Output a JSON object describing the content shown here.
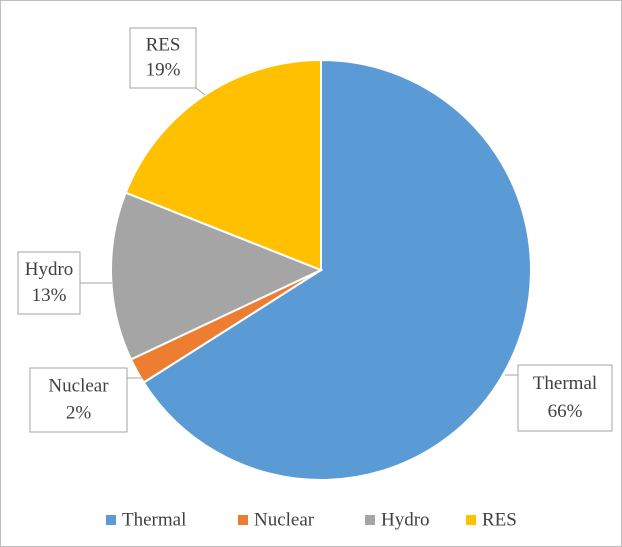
{
  "chart_data": {
    "type": "pie",
    "categories": [
      "Thermal",
      "Nuclear",
      "Hydro",
      "RES"
    ],
    "values": [
      66,
      2,
      13,
      19
    ],
    "value_labels": [
      "66%",
      "2%",
      "13%",
      "19%"
    ],
    "colors": [
      "#5b9bd5",
      "#ed7d31",
      "#a5a5a5",
      "#ffc000"
    ],
    "legend": "bottom"
  }
}
